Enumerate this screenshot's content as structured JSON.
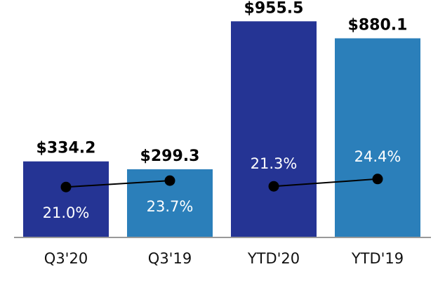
{
  "chart_data": {
    "type": "bar",
    "title": "",
    "xlabel": "",
    "ylabel": "",
    "ylim": [
      0,
      1050
    ],
    "grid": false,
    "categories": [
      "Q3'20",
      "Q3'19",
      "YTD'20",
      "YTD'19"
    ],
    "values": [
      334.2,
      299.3,
      955.5,
      880.1
    ],
    "value_labels": [
      "$334.2",
      "$299.3",
      "$955.5",
      "$880.1"
    ],
    "margin_pct": [
      21.0,
      23.7,
      21.3,
      24.4
    ],
    "margin_labels": [
      "21.0%",
      "23.7%",
      "21.3%",
      "24.4%"
    ],
    "margin_lines": [
      [
        0,
        1
      ],
      [
        2,
        3
      ]
    ],
    "margin_ylim": [
      0,
      100
    ],
    "bar_colors": [
      "#253494",
      "#2b7fba",
      "#253494",
      "#2b7fba"
    ],
    "axis_color": "#999999",
    "marker_color": "#000000"
  }
}
